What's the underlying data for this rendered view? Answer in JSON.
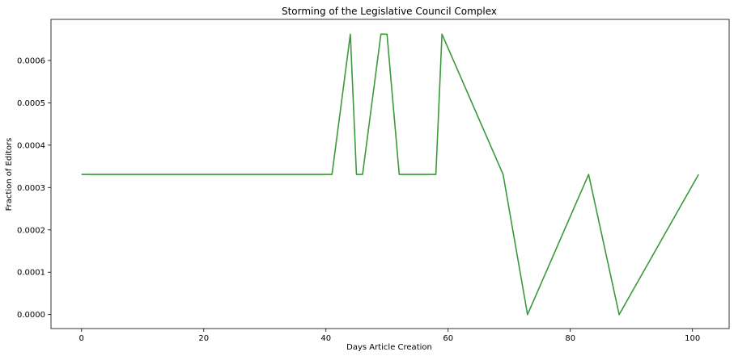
{
  "chart_data": {
    "type": "line",
    "title": "Storming of the Legislative Council Complex",
    "xlabel": "Days Article Creation",
    "ylabel": "Fraction of Editors",
    "xlim": [
      -5,
      106
    ],
    "ylim": [
      -3.3e-05,
      0.000697
    ],
    "xticks": [
      0,
      20,
      40,
      60,
      80,
      100
    ],
    "yticks": [
      0.0,
      0.0001,
      0.0002,
      0.0003,
      0.0004,
      0.0005,
      0.0006
    ],
    "ytick_labels": [
      "0.0000",
      "0.0001",
      "0.0002",
      "0.0003",
      "0.0004",
      "0.0005",
      "0.0006"
    ],
    "grid": false,
    "series": [
      {
        "color": "#3a9a3a",
        "x": [
          0,
          41,
          44,
          45,
          46,
          49,
          50,
          52,
          58,
          59,
          69,
          73,
          83,
          88,
          101
        ],
        "y": [
          0.000331,
          0.000331,
          0.000662,
          0.000331,
          0.000331,
          0.000662,
          0.000662,
          0.000331,
          0.000331,
          0.000662,
          0.000331,
          0.0,
          0.000331,
          0.0,
          0.000331
        ]
      }
    ]
  }
}
